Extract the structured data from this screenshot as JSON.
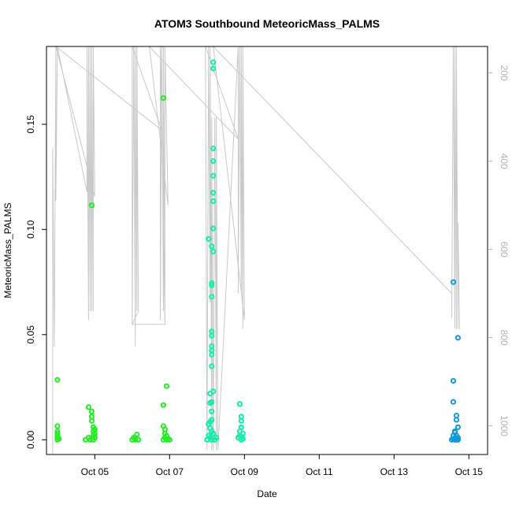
{
  "chart_data": {
    "type": "scatter",
    "title": "ATOM3 Southbound MeteoricMass_PALMS",
    "xlabel": "Date",
    "ylabel": "MeteoricMass_PALMS",
    "xlim": [
      "2016-10-03T17:00",
      "2016-10-15T12:00"
    ],
    "ylim": [
      -0.007,
      0.187
    ],
    "x_ticks": [
      {
        "date": "2016-10-05",
        "label": "Oct 05"
      },
      {
        "date": "2016-10-07",
        "label": "Oct 07"
      },
      {
        "date": "2016-10-09",
        "label": "Oct 09"
      },
      {
        "date": "2016-10-11",
        "label": "Oct 11"
      },
      {
        "date": "2016-10-13",
        "label": "Oct 13"
      },
      {
        "date": "2016-10-15",
        "label": "Oct 15"
      }
    ],
    "y_ticks": [
      0.0,
      0.05,
      0.1,
      0.15
    ],
    "y_tick_labels": [
      "0.00",
      "0.05",
      "0.10",
      "0.15"
    ],
    "right_axis": {
      "quantity": "pressure",
      "lim": [
        140,
        1065
      ],
      "ticks": [
        200,
        400,
        600,
        800,
        1000
      ],
      "tick_labels": [
        "200",
        "400",
        "600",
        "800",
        "1000"
      ],
      "color": "#b3b3b3",
      "inverted": true
    },
    "colors": {
      "green": "#22ee22",
      "aqua": "#11eeaa",
      "blue": "#1199dd",
      "altitude_line": "#c8c8c8"
    },
    "series": [
      {
        "color": "#22ee22",
        "points": [
          [
            "2016-10-04T00:00",
            0.0285
          ],
          [
            "2016-10-04T00:00",
            0.0065
          ],
          [
            "2016-10-04T00:00",
            0.004
          ],
          [
            "2016-10-04T00:00",
            0.003
          ],
          [
            "2016-10-04T00:00",
            0.002
          ],
          [
            "2016-10-04T00:00",
            0.001
          ],
          [
            "2016-10-04T00:00",
            0.0
          ],
          [
            "2016-10-04T01:00",
            0.0005
          ],
          [
            "2016-10-04T20:00",
            0.0155
          ],
          [
            "2016-10-04T22:00",
            0.0135
          ],
          [
            "2016-10-04T22:00",
            0.011
          ],
          [
            "2016-10-04T22:00",
            0.009
          ],
          [
            "2016-10-04T23:00",
            0.006
          ],
          [
            "2016-10-04T23:00",
            0.004
          ],
          [
            "2016-10-04T23:00",
            0.002
          ],
          [
            "2016-10-04T23:00",
            0.0
          ],
          [
            "2016-10-05T00:00",
            0.005
          ],
          [
            "2016-10-05T00:00",
            0.003
          ],
          [
            "2016-10-05T00:00",
            0.001
          ],
          [
            "2016-10-04T18:00",
            0.0
          ],
          [
            "2016-10-04T20:00",
            0.001
          ],
          [
            "2016-10-04T21:00",
            0.0
          ],
          [
            "2016-10-04T22:00",
            0.1115
          ],
          [
            "2016-10-06T00:00",
            0.0
          ],
          [
            "2016-10-06T01:00",
            0.001
          ],
          [
            "2016-10-06T02:00",
            0.0
          ],
          [
            "2016-10-06T03:00",
            0.0025
          ],
          [
            "2016-10-06T04:00",
            0.0
          ],
          [
            "2016-10-06T02:00",
            0.0005
          ],
          [
            "2016-10-06T20:00",
            0.1625
          ],
          [
            "2016-10-06T20:00",
            0.0165
          ],
          [
            "2016-10-06T20:00",
            0.0065
          ],
          [
            "2016-10-06T21:00",
            0.005
          ],
          [
            "2016-10-06T21:00",
            0.003
          ],
          [
            "2016-10-06T21:00",
            0.001
          ],
          [
            "2016-10-06T22:00",
            0.0
          ],
          [
            "2016-10-06T23:00",
            0.0005
          ],
          [
            "2016-10-06T22:00",
            0.0255
          ],
          [
            "2016-10-06T20:00",
            0.0
          ],
          [
            "2016-10-07T00:00",
            0.0
          ],
          [
            "2016-10-06T22:00",
            0.002
          ]
        ]
      },
      {
        "color": "#11eeaa",
        "points": [
          [
            "2016-10-08T01:00",
            0.0955
          ],
          [
            "2016-10-08T04:00",
            0.1795
          ],
          [
            "2016-10-08T04:00",
            0.1765
          ],
          [
            "2016-10-08T04:00",
            0.1385
          ],
          [
            "2016-10-08T04:00",
            0.1325
          ],
          [
            "2016-10-08T04:00",
            0.1255
          ],
          [
            "2016-10-08T04:00",
            0.1175
          ],
          [
            "2016-10-08T04:00",
            0.1135
          ],
          [
            "2016-10-08T04:00",
            0.1005
          ],
          [
            "2016-10-08T03:00",
            0.092
          ],
          [
            "2016-10-08T04:00",
            0.0895
          ],
          [
            "2016-10-08T03:00",
            0.0745
          ],
          [
            "2016-10-08T03:00",
            0.0735
          ],
          [
            "2016-10-08T03:00",
            0.068
          ],
          [
            "2016-10-08T03:00",
            0.0515
          ],
          [
            "2016-10-08T03:00",
            0.0495
          ],
          [
            "2016-10-08T03:00",
            0.0445
          ],
          [
            "2016-10-08T03:00",
            0.0425
          ],
          [
            "2016-10-08T03:00",
            0.0405
          ],
          [
            "2016-10-08T03:00",
            0.035
          ],
          [
            "2016-10-08T04:00",
            0.023
          ],
          [
            "2016-10-08T02:00",
            0.022
          ],
          [
            "2016-10-08T03:00",
            0.018
          ],
          [
            "2016-10-08T02:00",
            0.0175
          ],
          [
            "2016-10-08T03:00",
            0.0135
          ],
          [
            "2016-10-08T03:00",
            0.0095
          ],
          [
            "2016-10-08T02:00",
            0.0085
          ],
          [
            "2016-10-08T01:00",
            0.0075
          ],
          [
            "2016-10-08T02:00",
            0.0055
          ],
          [
            "2016-10-08T03:00",
            0.004
          ],
          [
            "2016-10-08T04:00",
            0.003
          ],
          [
            "2016-10-08T01:00",
            0.002
          ],
          [
            "2016-10-08T02:00",
            0.001
          ],
          [
            "2016-10-08T03:00",
            0.0
          ],
          [
            "2016-10-08T05:00",
            0.0
          ],
          [
            "2016-10-08T06:00",
            0.001
          ],
          [
            "2016-10-08T00:00",
            0.0
          ],
          [
            "2016-10-08T21:00",
            0.017
          ],
          [
            "2016-10-08T22:00",
            0.011
          ],
          [
            "2016-10-08T22:00",
            0.009
          ],
          [
            "2016-10-08T22:00",
            0.006
          ],
          [
            "2016-10-08T21:00",
            0.004
          ],
          [
            "2016-10-08T21:00",
            0.002
          ],
          [
            "2016-10-08T22:00",
            0.0
          ],
          [
            "2016-10-08T23:00",
            0.003
          ],
          [
            "2016-10-08T23:00",
            0.0005
          ],
          [
            "2016-10-08T20:00",
            0.001
          ],
          [
            "2016-10-08T22:00",
            0.0015
          ]
        ]
      },
      {
        "color": "#1199dd",
        "points": [
          [
            "2016-10-14T14:00",
            0.075
          ],
          [
            "2016-10-14T17:00",
            0.0485
          ],
          [
            "2016-10-14T14:00",
            0.028
          ],
          [
            "2016-10-14T14:00",
            0.018
          ],
          [
            "2016-10-14T16:00",
            0.0115
          ],
          [
            "2016-10-14T16:00",
            0.0095
          ],
          [
            "2016-10-14T17:00",
            0.006
          ],
          [
            "2016-10-14T15:00",
            0.004
          ],
          [
            "2016-10-14T15:00",
            0.0035
          ],
          [
            "2016-10-14T14:00",
            0.002
          ],
          [
            "2016-10-14T16:00",
            0.002
          ],
          [
            "2016-10-14T17:00",
            0.001
          ],
          [
            "2016-10-14T14:00",
            0.0005
          ],
          [
            "2016-10-14T15:00",
            0.0
          ],
          [
            "2016-10-14T16:00",
            0.0
          ],
          [
            "2016-10-14T17:00",
            0.0
          ],
          [
            "2016-10-14T13:00",
            0.0
          ]
        ]
      }
    ],
    "altitude_trace": [
      [
        "2016-10-03T21:00",
        1065
      ],
      [
        "2016-10-03T21:00",
        370
      ],
      [
        "2016-10-03T22:00",
        820
      ],
      [
        "2016-10-03T23:00",
        140
      ],
      [
        "2016-10-03T23:00",
        490
      ],
      [
        "2016-10-04T00:00",
        140
      ],
      [
        "2016-10-04T19:00",
        470
      ],
      [
        "2016-10-04T19:00",
        140
      ],
      [
        "2016-10-04T20:00",
        760
      ],
      [
        "2016-10-04T20:00",
        140
      ],
      [
        "2016-10-04T21:00",
        740
      ],
      [
        "2016-10-04T21:00",
        140
      ],
      [
        "2016-10-04T22:00",
        740
      ],
      [
        "2016-10-04T22:00",
        140
      ],
      [
        "2016-10-04T23:00",
        740
      ],
      [
        "2016-10-04T23:00",
        140
      ],
      [
        "2016-10-05T00:00",
        480
      ],
      [
        "2016-10-03T23:00",
        140
      ],
      [
        "2016-10-06T19:00",
        330
      ],
      [
        "2016-10-06T00:00",
        140
      ],
      [
        "2016-10-06T00:00",
        770
      ],
      [
        "2016-10-06T01:00",
        140
      ],
      [
        "2016-10-06T02:00",
        820
      ],
      [
        "2016-10-06T02:00",
        140
      ],
      [
        "2016-10-06T03:00",
        740
      ],
      [
        "2016-10-06T03:00",
        140
      ],
      [
        "2016-10-06T04:00",
        740
      ],
      [
        "2016-10-06T00:00",
        770
      ],
      [
        "2016-10-06T21:00",
        770
      ],
      [
        "2016-10-06T18:00",
        140
      ],
      [
        "2016-10-06T18:00",
        760
      ],
      [
        "2016-10-06T19:00",
        140
      ],
      [
        "2016-10-06T20:00",
        740
      ],
      [
        "2016-10-06T20:00",
        140
      ],
      [
        "2016-10-06T21:00",
        770
      ],
      [
        "2016-10-06T21:00",
        140
      ],
      [
        "2016-10-06T23:00",
        500
      ],
      [
        "2016-10-06T11:00",
        140
      ],
      [
        "2016-10-08T20:00",
        350
      ],
      [
        "2016-10-07T23:00",
        140
      ],
      [
        "2016-10-08T00:00",
        1055
      ],
      [
        "2016-10-08T01:00",
        140
      ],
      [
        "2016-10-08T02:00",
        720
      ],
      [
        "2016-10-08T02:00",
        140
      ],
      [
        "2016-10-08T03:00",
        1055
      ],
      [
        "2016-10-08T03:00",
        300
      ],
      [
        "2016-10-08T04:00",
        1055
      ],
      [
        "2016-10-08T05:00",
        300
      ],
      [
        "2016-10-08T06:00",
        1055
      ],
      [
        "2016-10-08T06:00",
        300
      ],
      [
        "2016-10-08T07:00",
        1055
      ],
      [
        "2016-10-08T20:00",
        140
      ],
      [
        "2016-10-08T20:00",
        700
      ],
      [
        "2016-10-08T21:00",
        140
      ],
      [
        "2016-10-08T22:00",
        700
      ],
      [
        "2016-10-08T22:00",
        140
      ],
      [
        "2016-10-08T23:00",
        780
      ],
      [
        "2016-10-08T23:00",
        140
      ],
      [
        "2016-10-09T00:00",
        760
      ],
      [
        "2016-10-08T04:00",
        140
      ],
      [
        "2016-10-14T13:00",
        700
      ],
      [
        "2016-10-14T13:00",
        755
      ],
      [
        "2016-10-14T14:00",
        140
      ],
      [
        "2016-10-14T15:00",
        780
      ],
      [
        "2016-10-14T15:00",
        140
      ],
      [
        "2016-10-14T16:00",
        780
      ],
      [
        "2016-10-14T16:00",
        140
      ],
      [
        "2016-10-14T17:00",
        780
      ],
      [
        "2016-10-14T17:00",
        540
      ],
      [
        "2016-10-14T18:00",
        780
      ]
    ]
  }
}
